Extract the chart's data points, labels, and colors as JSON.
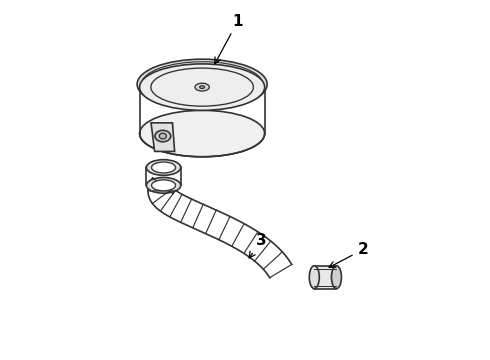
{
  "title": "",
  "background_color": "#ffffff",
  "line_color": "#333333",
  "line_width": 1.2,
  "label_color": "#000000",
  "labels": {
    "1": [
      0.47,
      0.94
    ],
    "2": [
      0.82,
      0.3
    ],
    "3": [
      0.53,
      0.32
    ]
  },
  "figsize": [
    4.9,
    3.6
  ],
  "dpi": 100
}
